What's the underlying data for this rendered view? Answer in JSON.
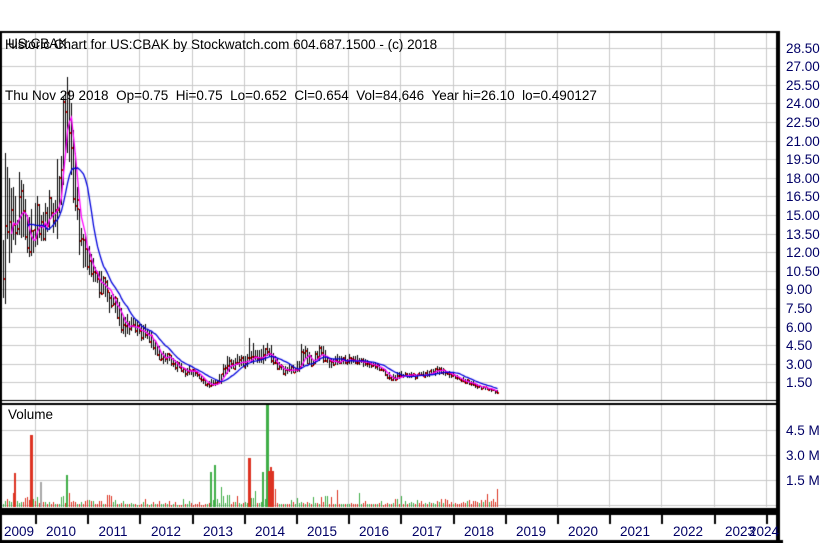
{
  "header": {
    "title": "Historic Chart for US:CBAK by Stockwatch.com 604.687.1500 - (c) 2018",
    "quote_line": "Thu Nov 29 2018  Op=0.75  Hi=0.75  Lo=0.652  Cl=0.654  Vol=84,646  Year hi=26.10  lo=0.490127"
  },
  "price_pane": {
    "symbol_label": "US:CBAK"
  },
  "volume_pane": {
    "label": "Volume"
  },
  "axes": {
    "price_ticks": [
      "28.50",
      "27.00",
      "25.50",
      "24.00",
      "22.50",
      "21.00",
      "19.50",
      "18.00",
      "16.50",
      "15.00",
      "13.50",
      "12.00",
      "10.50",
      "9.00",
      "7.50",
      "6.00",
      "4.50",
      "3.00",
      "1.50"
    ],
    "volume_ticks": [
      "4.5 M",
      "3.0 M",
      "1.5 M"
    ],
    "years": [
      "2009",
      "2010",
      "2011",
      "2012",
      "2013",
      "2014",
      "2015",
      "2016",
      "2017",
      "2018",
      "2019",
      "2020",
      "2021",
      "2022",
      "2023",
      "2024"
    ]
  },
  "colors": {
    "background": "#ffffff",
    "grid": "#c9c9c9",
    "frame": "#000000",
    "bar": "#000000",
    "close_tick": "#ff0000",
    "ma_short": "#ff00ff",
    "ma_long": "#0000dd",
    "vol_up": "#3fae47",
    "vol_down": "#dd3322",
    "vol_neutral": "#a8a8a8",
    "axis_text": "#000066",
    "header_text": "#000000"
  },
  "chart_data": {
    "type": "bar",
    "subtype": "ohlc-highlow-bars-with-volume",
    "symbol": "US:CBAK",
    "title": "Historic Chart for US:CBAK",
    "x_axis": {
      "unit": "year",
      "range": [
        2009.33,
        2024.0
      ],
      "tick_years": [
        2009,
        2010,
        2011,
        2012,
        2013,
        2014,
        2015,
        2016,
        2017,
        2018,
        2019,
        2020,
        2021,
        2022,
        2023,
        2024
      ],
      "data_end": 2018.92
    },
    "price_axis": {
      "label_min": 1.5,
      "label_max": 28.5,
      "step": 1.5,
      "grid": true
    },
    "volume_axis": {
      "labels_millions": [
        4.5,
        3.0,
        1.5
      ],
      "step_millions": 1.5,
      "grid": true
    },
    "last_quote": {
      "date": "Thu Nov 29 2018",
      "open": 0.75,
      "high": 0.75,
      "low": 0.652,
      "close": 0.654,
      "volume": 84646,
      "year_high": 26.1,
      "year_low": 0.490127
    },
    "moving_averages": [
      {
        "name": "short-ma",
        "color_key": "ma_short",
        "approx_weeks": 10
      },
      {
        "name": "long-ma",
        "color_key": "ma_long",
        "approx_weeks": 26
      }
    ],
    "columns": [
      "month",
      "close",
      "high",
      "low",
      "peak_weekly_volume_millions"
    ],
    "monthly_points": [
      [
        "2009-05",
        9.5,
        13.0,
        5.8,
        0.5
      ],
      [
        "2009-06",
        13.5,
        20.0,
        8.5,
        0.8
      ],
      [
        "2009-07",
        15.0,
        18.0,
        12.0,
        1.2
      ],
      [
        "2009-08",
        14.0,
        16.5,
        12.0,
        1.9
      ],
      [
        "2009-09",
        16.0,
        18.5,
        13.0,
        1.3
      ],
      [
        "2009-10",
        14.5,
        17.5,
        12.5,
        0.9
      ],
      [
        "2009-11",
        12.8,
        15.0,
        10.8,
        0.8
      ],
      [
        "2009-12",
        14.0,
        15.5,
        11.5,
        4.2
      ],
      [
        "2010-01",
        14.5,
        16.5,
        12.5,
        1.6
      ],
      [
        "2010-02",
        13.5,
        15.0,
        12.0,
        1.4
      ],
      [
        "2010-03",
        14.8,
        16.0,
        13.0,
        0.7
      ],
      [
        "2010-04",
        15.5,
        17.0,
        13.8,
        0.6
      ],
      [
        "2010-05",
        14.0,
        16.0,
        12.5,
        0.5
      ],
      [
        "2010-06",
        17.5,
        19.5,
        13.5,
        0.9
      ],
      [
        "2010-07",
        22.0,
        24.5,
        17.0,
        1.6
      ],
      [
        "2010-08",
        23.0,
        26.1,
        20.5,
        1.8
      ],
      [
        "2010-09",
        20.0,
        24.0,
        16.5,
        1.1
      ],
      [
        "2010-10",
        15.0,
        20.0,
        13.0,
        0.9
      ],
      [
        "2010-11",
        13.0,
        15.5,
        11.0,
        0.6
      ],
      [
        "2010-12",
        12.0,
        13.5,
        10.5,
        0.5
      ],
      [
        "2011-01",
        11.0,
        12.5,
        9.8,
        0.5
      ],
      [
        "2011-02",
        10.0,
        11.5,
        9.0,
        0.4
      ],
      [
        "2011-03",
        9.0,
        10.5,
        8.0,
        0.5
      ],
      [
        "2011-04",
        9.5,
        10.5,
        8.5,
        0.4
      ],
      [
        "2011-05",
        8.5,
        10.0,
        7.5,
        0.9
      ],
      [
        "2011-06",
        7.5,
        8.8,
        6.8,
        0.5
      ],
      [
        "2011-07",
        7.8,
        8.5,
        6.9,
        0.4
      ],
      [
        "2011-08",
        6.5,
        8.0,
        5.5,
        0.6
      ],
      [
        "2011-09",
        5.8,
        6.8,
        5.0,
        0.4
      ],
      [
        "2011-10",
        6.2,
        7.0,
        5.2,
        0.3
      ],
      [
        "2011-11",
        6.2,
        6.8,
        5.4,
        0.4
      ],
      [
        "2011-12",
        6.0,
        6.5,
        5.2,
        0.3
      ],
      [
        "2012-01",
        5.4,
        6.2,
        4.8,
        0.4
      ],
      [
        "2012-02",
        5.6,
        6.2,
        4.9,
        0.5
      ],
      [
        "2012-03",
        4.9,
        5.7,
        4.3,
        0.3
      ],
      [
        "2012-04",
        4.3,
        5.1,
        3.8,
        0.3
      ],
      [
        "2012-05",
        3.7,
        4.5,
        3.2,
        0.4
      ],
      [
        "2012-06",
        3.3,
        4.0,
        2.9,
        0.7
      ],
      [
        "2012-07",
        3.5,
        3.9,
        3.0,
        0.4
      ],
      [
        "2012-08",
        3.1,
        3.7,
        2.7,
        0.3
      ],
      [
        "2012-09",
        2.8,
        3.3,
        2.4,
        0.3
      ],
      [
        "2012-10",
        2.6,
        3.1,
        2.2,
        0.3
      ],
      [
        "2012-11",
        2.3,
        2.7,
        1.9,
        0.4
      ],
      [
        "2012-12",
        2.4,
        2.8,
        2.0,
        0.3
      ],
      [
        "2013-01",
        2.2,
        2.6,
        1.9,
        0.3
      ],
      [
        "2013-02",
        1.9,
        2.3,
        1.6,
        0.2
      ],
      [
        "2013-03",
        1.6,
        2.0,
        1.3,
        0.3
      ],
      [
        "2013-04",
        1.3,
        1.7,
        1.0,
        0.4
      ],
      [
        "2013-05",
        1.5,
        1.8,
        1.1,
        2.0
      ],
      [
        "2013-06",
        1.4,
        1.7,
        1.2,
        2.4
      ],
      [
        "2013-07",
        1.8,
        2.2,
        1.3,
        1.0
      ],
      [
        "2013-08",
        2.5,
        3.0,
        1.7,
        1.4
      ],
      [
        "2013-09",
        3.0,
        3.6,
        2.3,
        1.2
      ],
      [
        "2013-10",
        2.8,
        3.4,
        2.4,
        0.9
      ],
      [
        "2013-11",
        3.3,
        3.8,
        2.6,
        1.1
      ],
      [
        "2013-12",
        3.1,
        3.7,
        2.7,
        1.0
      ],
      [
        "2014-01",
        2.9,
        3.6,
        2.5,
        1.2
      ],
      [
        "2014-02",
        4.3,
        5.1,
        2.8,
        2.8
      ],
      [
        "2014-03",
        3.7,
        4.7,
        3.1,
        1.5
      ],
      [
        "2014-04",
        3.3,
        4.1,
        2.9,
        1.3
      ],
      [
        "2014-05",
        3.8,
        4.5,
        3.0,
        2.0
      ],
      [
        "2014-06",
        4.2,
        4.7,
        3.4,
        6.2
      ],
      [
        "2014-07",
        3.4,
        4.5,
        2.9,
        2.3
      ],
      [
        "2014-08",
        2.9,
        3.6,
        2.5,
        1.0
      ],
      [
        "2014-09",
        2.5,
        3.1,
        2.2,
        0.7
      ],
      [
        "2014-10",
        2.3,
        2.8,
        2.0,
        0.6
      ],
      [
        "2014-11",
        2.6,
        3.0,
        2.2,
        0.5
      ],
      [
        "2014-12",
        2.4,
        2.9,
        2.1,
        0.6
      ],
      [
        "2015-01",
        2.7,
        3.2,
        2.3,
        0.7
      ],
      [
        "2015-02",
        3.9,
        4.6,
        2.6,
        1.3
      ],
      [
        "2015-03",
        3.4,
        4.4,
        3.0,
        0.9
      ],
      [
        "2015-04",
        3.1,
        3.7,
        2.7,
        0.6
      ],
      [
        "2015-05",
        3.5,
        4.0,
        2.9,
        0.7
      ],
      [
        "2015-06",
        4.0,
        4.5,
        3.2,
        1.1
      ],
      [
        "2015-07",
        3.4,
        4.4,
        3.0,
        0.9
      ],
      [
        "2015-08",
        2.9,
        3.5,
        2.5,
        0.8
      ],
      [
        "2015-09",
        3.1,
        3.5,
        2.6,
        0.6
      ],
      [
        "2015-10",
        3.4,
        3.8,
        2.9,
        0.9
      ],
      [
        "2015-11",
        3.2,
        3.6,
        2.8,
        0.5
      ],
      [
        "2015-12",
        3.3,
        3.7,
        2.9,
        0.6
      ],
      [
        "2016-01",
        3.3,
        3.8,
        2.9,
        0.5
      ],
      [
        "2016-02",
        3.1,
        3.6,
        2.8,
        0.4
      ],
      [
        "2016-03",
        3.3,
        3.7,
        2.9,
        0.9
      ],
      [
        "2016-04",
        3.1,
        3.5,
        2.7,
        0.5
      ],
      [
        "2016-05",
        2.9,
        3.3,
        2.6,
        0.4
      ],
      [
        "2016-06",
        2.7,
        3.1,
        2.4,
        0.5
      ],
      [
        "2016-07",
        2.8,
        3.1,
        2.5,
        0.4
      ],
      [
        "2016-08",
        2.6,
        2.9,
        2.3,
        0.4
      ],
      [
        "2016-09",
        2.1,
        2.6,
        1.8,
        0.3
      ],
      [
        "2016-10",
        1.9,
        2.3,
        1.6,
        0.4
      ],
      [
        "2016-11",
        1.8,
        2.2,
        1.5,
        0.5
      ],
      [
        "2016-12",
        2.0,
        2.3,
        1.7,
        0.6
      ],
      [
        "2017-01",
        2.1,
        2.4,
        1.8,
        1.0
      ],
      [
        "2017-02",
        2.0,
        2.3,
        1.8,
        0.5
      ],
      [
        "2017-03",
        2.0,
        2.3,
        1.7,
        0.4
      ],
      [
        "2017-04",
        2.0,
        2.2,
        1.7,
        0.4
      ],
      [
        "2017-05",
        2.1,
        2.3,
        1.8,
        0.5
      ],
      [
        "2017-06",
        2.1,
        2.4,
        1.8,
        0.4
      ],
      [
        "2017-07",
        2.2,
        2.5,
        1.9,
        0.5
      ],
      [
        "2017-08",
        2.3,
        2.6,
        2.0,
        0.6
      ],
      [
        "2017-09",
        2.5,
        2.8,
        2.1,
        0.7
      ],
      [
        "2017-10",
        2.4,
        2.7,
        2.1,
        0.5
      ],
      [
        "2017-11",
        2.2,
        2.5,
        1.9,
        0.6
      ],
      [
        "2017-12",
        2.1,
        2.4,
        1.8,
        0.5
      ],
      [
        "2018-01",
        2.0,
        2.3,
        1.8,
        0.6
      ],
      [
        "2018-02",
        1.8,
        2.1,
        1.6,
        0.5
      ],
      [
        "2018-03",
        1.6,
        1.9,
        1.4,
        0.5
      ],
      [
        "2018-04",
        1.5,
        1.75,
        1.3,
        0.6
      ],
      [
        "2018-05",
        1.3,
        1.6,
        1.1,
        0.8
      ],
      [
        "2018-06",
        1.2,
        1.45,
        1.0,
        1.3
      ],
      [
        "2018-07",
        1.05,
        1.25,
        0.9,
        1.0
      ],
      [
        "2018-08",
        1.0,
        1.15,
        0.85,
        0.9
      ],
      [
        "2018-09",
        0.9,
        1.05,
        0.75,
        1.2
      ],
      [
        "2018-10",
        0.75,
        0.95,
        0.6,
        1.4
      ],
      [
        "2018-11",
        0.654,
        0.85,
        0.49,
        1.2
      ]
    ],
    "volume_color_overrides": {
      "2009-12": "red",
      "2010-02": "gray",
      "2014-02": "red",
      "2014-06": "green"
    }
  }
}
